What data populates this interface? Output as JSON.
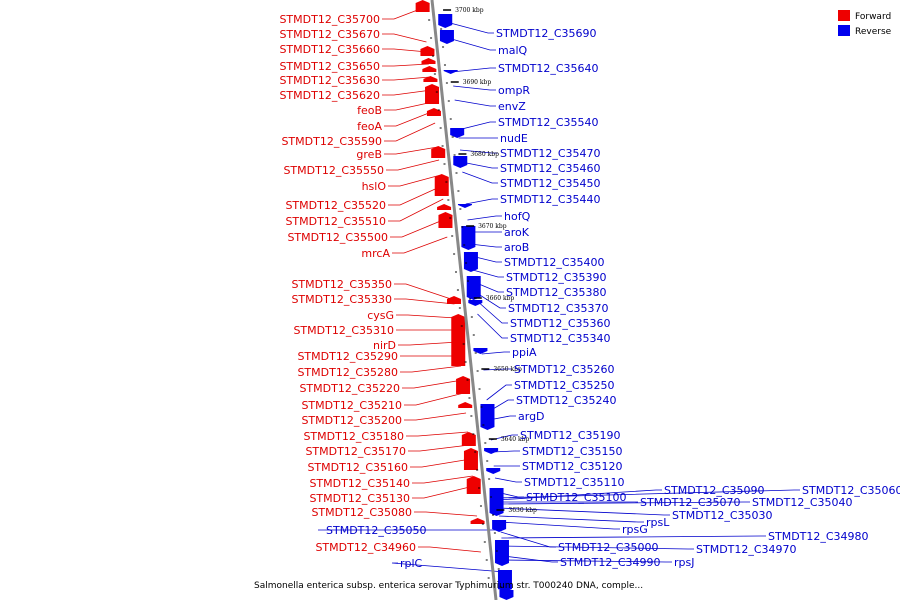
{
  "legend": {
    "forward": {
      "label": "Forward",
      "color": "#ee0000"
    },
    "reverse": {
      "label": "Reverse",
      "color": "#0000ee"
    }
  },
  "caption": "Salmonella enterica subsp. enterica serovar Typhimurium str. T000240 DNA, comple...",
  "ticks": [
    "3700 kbp",
    "3690 kbp",
    "3680 kbp",
    "3670 kbp",
    "3660 kbp",
    "3650 kbp",
    "3640 kbp",
    "3630 kbp"
  ],
  "forward_labels": [
    "STMDT12_C35700",
    "STMDT12_C35670",
    "STMDT12_C35660",
    "STMDT12_C35650",
    "STMDT12_C35630",
    "STMDT12_C35620",
    "feoB",
    "feoA",
    "STMDT12_C35590",
    "greB",
    "STMDT12_C35550",
    "hslO",
    "STMDT12_C35520",
    "STMDT12_C35510",
    "STMDT12_C35500",
    "mrcA",
    "STMDT12_C35350",
    "STMDT12_C35330",
    "cysG",
    "STMDT12_C35310",
    "nirD",
    "STMDT12_C35290",
    "STMDT12_C35280",
    "STMDT12_C35220",
    "STMDT12_C35210",
    "STMDT12_C35200",
    "STMDT12_C35180",
    "STMDT12_C35170",
    "STMDT12_C35160",
    "STMDT12_C35140",
    "STMDT12_C35130",
    "STMDT12_C35080",
    "STMDT12_C34960"
  ],
  "reverse_labels": [
    "STMDT12_C35690",
    "malQ",
    "STMDT12_C35640",
    "ompR",
    "envZ",
    "STMDT12_C35540",
    "nudE",
    "STMDT12_C35470",
    "STMDT12_C35460",
    "STMDT12_C35450",
    "STMDT12_C35440",
    "hofQ",
    "aroK",
    "aroB",
    "STMDT12_C35400",
    "STMDT12_C35390",
    "STMDT12_C35380",
    "STMDT12_C35370",
    "STMDT12_C35360",
    "STMDT12_C35340",
    "ppiA",
    "STMDT12_C35260",
    "STMDT12_C35250",
    "STMDT12_C35240",
    "argD",
    "STMDT12_C35190",
    "STMDT12_C35150",
    "STMDT12_C35120",
    "STMDT12_C35110",
    "STMDT12_C35100",
    "STMDT12_C35090",
    "STMDT12_C35070",
    "STMDT12_C35060",
    "STMDT12_C35040",
    "STMDT12_C35030",
    "rpsL",
    "rpsG",
    "STMDT12_C35000",
    "STMDT12_C34980",
    "STMDT12_C34970",
    "STMDT12_C34990",
    "rpsJ",
    "STMDT12_C35050",
    "rplC"
  ]
}
